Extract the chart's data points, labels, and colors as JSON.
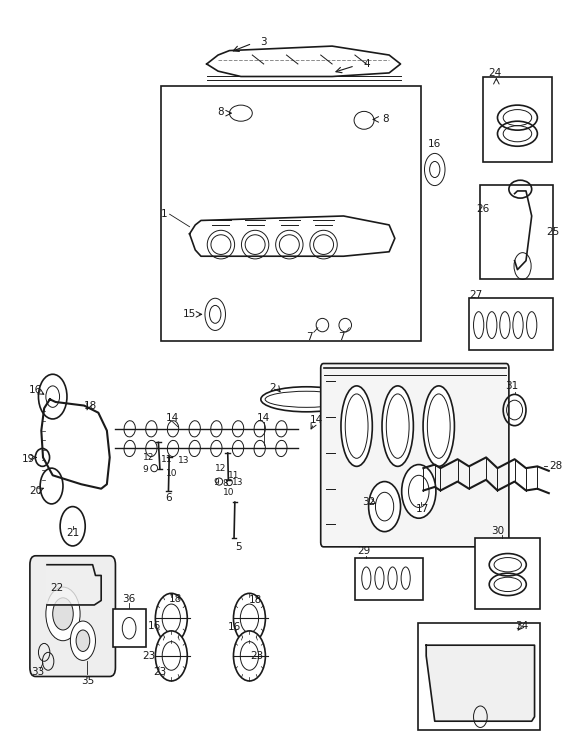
{
  "bg_color": "#ffffff",
  "line_color": "#1a1a1a",
  "fig_width": 5.73,
  "fig_height": 7.36,
  "dpi": 100
}
